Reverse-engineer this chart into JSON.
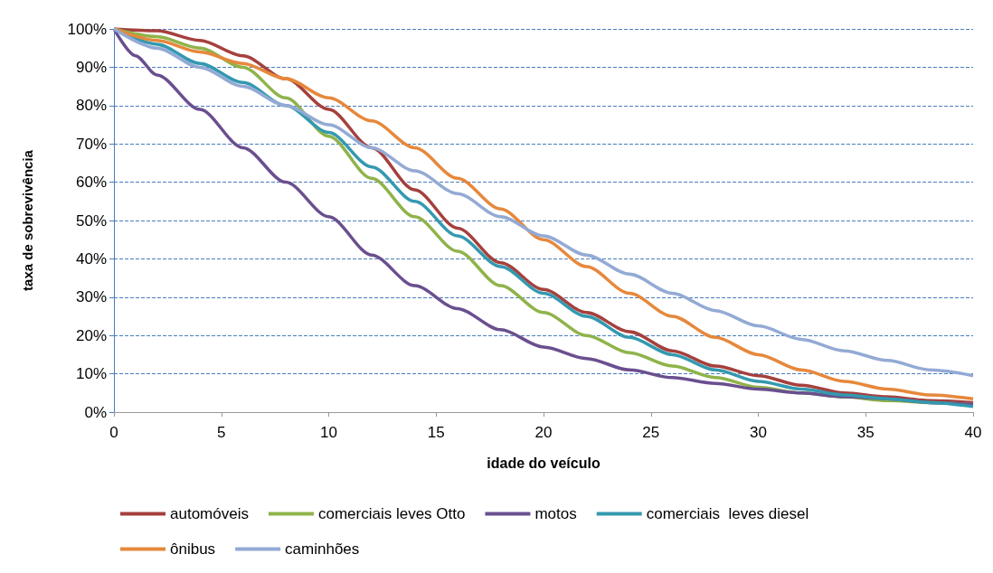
{
  "chart_data": {
    "type": "line",
    "xlabel": "idade do veículo",
    "ylabel": "taxa de sobrevivência",
    "x": [
      0,
      2,
      4,
      6,
      8,
      10,
      12,
      14,
      16,
      18,
      20,
      22,
      24,
      26,
      28,
      30,
      32,
      34,
      36,
      38,
      40
    ],
    "series": [
      {
        "name": "automóveis",
        "color": "#a5403d",
        "values": [
          100,
          99.5,
          97,
          93,
          87,
          79,
          69,
          58,
          48,
          39,
          32,
          26,
          21,
          16,
          12,
          9.5,
          7,
          5,
          4,
          3,
          2.5
        ]
      },
      {
        "name": "comerciais leves Otto",
        "color": "#8fb34a",
        "values": [
          100,
          98,
          95,
          90,
          82,
          72,
          61,
          51,
          42,
          33,
          26,
          20,
          15.5,
          12,
          9,
          6.5,
          5,
          4,
          3,
          2.5,
          2
        ]
      },
      {
        "name": "motos",
        "color": "#6a4f8f",
        "x": [
          0,
          1,
          2,
          4,
          6,
          8,
          10,
          12,
          14,
          16,
          18,
          20,
          22,
          24,
          26,
          28,
          30,
          32,
          34,
          36,
          38,
          40
        ],
        "values": [
          100,
          93,
          88,
          79,
          69,
          60,
          51,
          41,
          33,
          27,
          21.5,
          17,
          14,
          11,
          9,
          7.5,
          6,
          5,
          4,
          3.5,
          2.5,
          2
        ]
      },
      {
        "name": "comerciais  leves diesel",
        "color": "#3399b0",
        "values": [
          100,
          96,
          91,
          86,
          80,
          73,
          64,
          55,
          46,
          38,
          31,
          25,
          19.5,
          15,
          11,
          8,
          6,
          4.5,
          3.5,
          2.5,
          1.5
        ]
      },
      {
        "name": "ônibus",
        "color": "#e6883c",
        "values": [
          100,
          97,
          94,
          91,
          87,
          82,
          76,
          69,
          61,
          53,
          45,
          38,
          31,
          25,
          19.5,
          15,
          11,
          8,
          6,
          4.5,
          3.5
        ]
      },
      {
        "name": "caminhões",
        "color": "#93aad4",
        "values": [
          100,
          95,
          90,
          85,
          80,
          75,
          69,
          63,
          57,
          51,
          46,
          41,
          36,
          31,
          26.5,
          22.5,
          19,
          16,
          13.5,
          11,
          9.5
        ]
      }
    ],
    "xlim": [
      0,
      40
    ],
    "xticks": [
      0,
      5,
      10,
      15,
      20,
      25,
      30,
      35,
      40
    ],
    "ylim": [
      0,
      100
    ],
    "yticks": [
      {
        "value": 0,
        "label": "0%"
      },
      {
        "value": 10,
        "label": "10%"
      },
      {
        "value": 20,
        "label": "20%"
      },
      {
        "value": 30,
        "label": "30%"
      },
      {
        "value": 40,
        "label": "40%"
      },
      {
        "value": 50,
        "label": "50%"
      },
      {
        "value": 60,
        "label": "60%"
      },
      {
        "value": 70,
        "label": "70%"
      },
      {
        "value": 80,
        "label": "80%"
      },
      {
        "value": 90,
        "label": "90%"
      },
      {
        "value": 100,
        "label": "100%"
      }
    ],
    "grid": "y",
    "legend": "bottom",
    "marker": "none",
    "line_style": "solid"
  }
}
